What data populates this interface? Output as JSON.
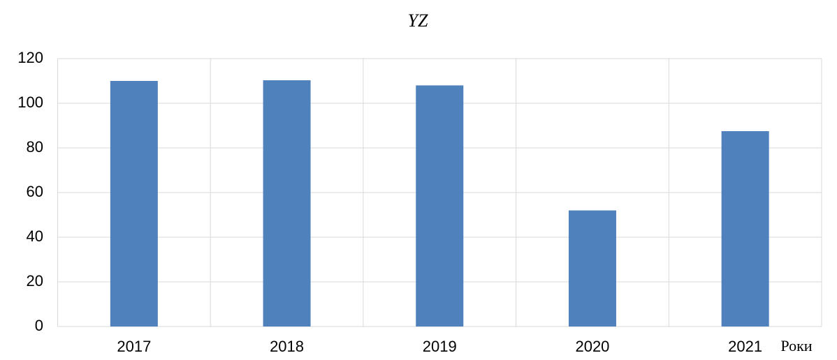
{
  "chart_data": {
    "type": "bar",
    "title": "YZ",
    "x_label": "Роки",
    "categories": [
      "2017",
      "2018",
      "2019",
      "2020",
      "2021"
    ],
    "values": [
      110,
      110.3,
      108,
      52,
      87.5
    ],
    "color": "#4f81bd",
    "ylim": [
      0,
      120
    ],
    "yticks": [
      0,
      20,
      40,
      60,
      80,
      100,
      120
    ],
    "grid": true
  }
}
